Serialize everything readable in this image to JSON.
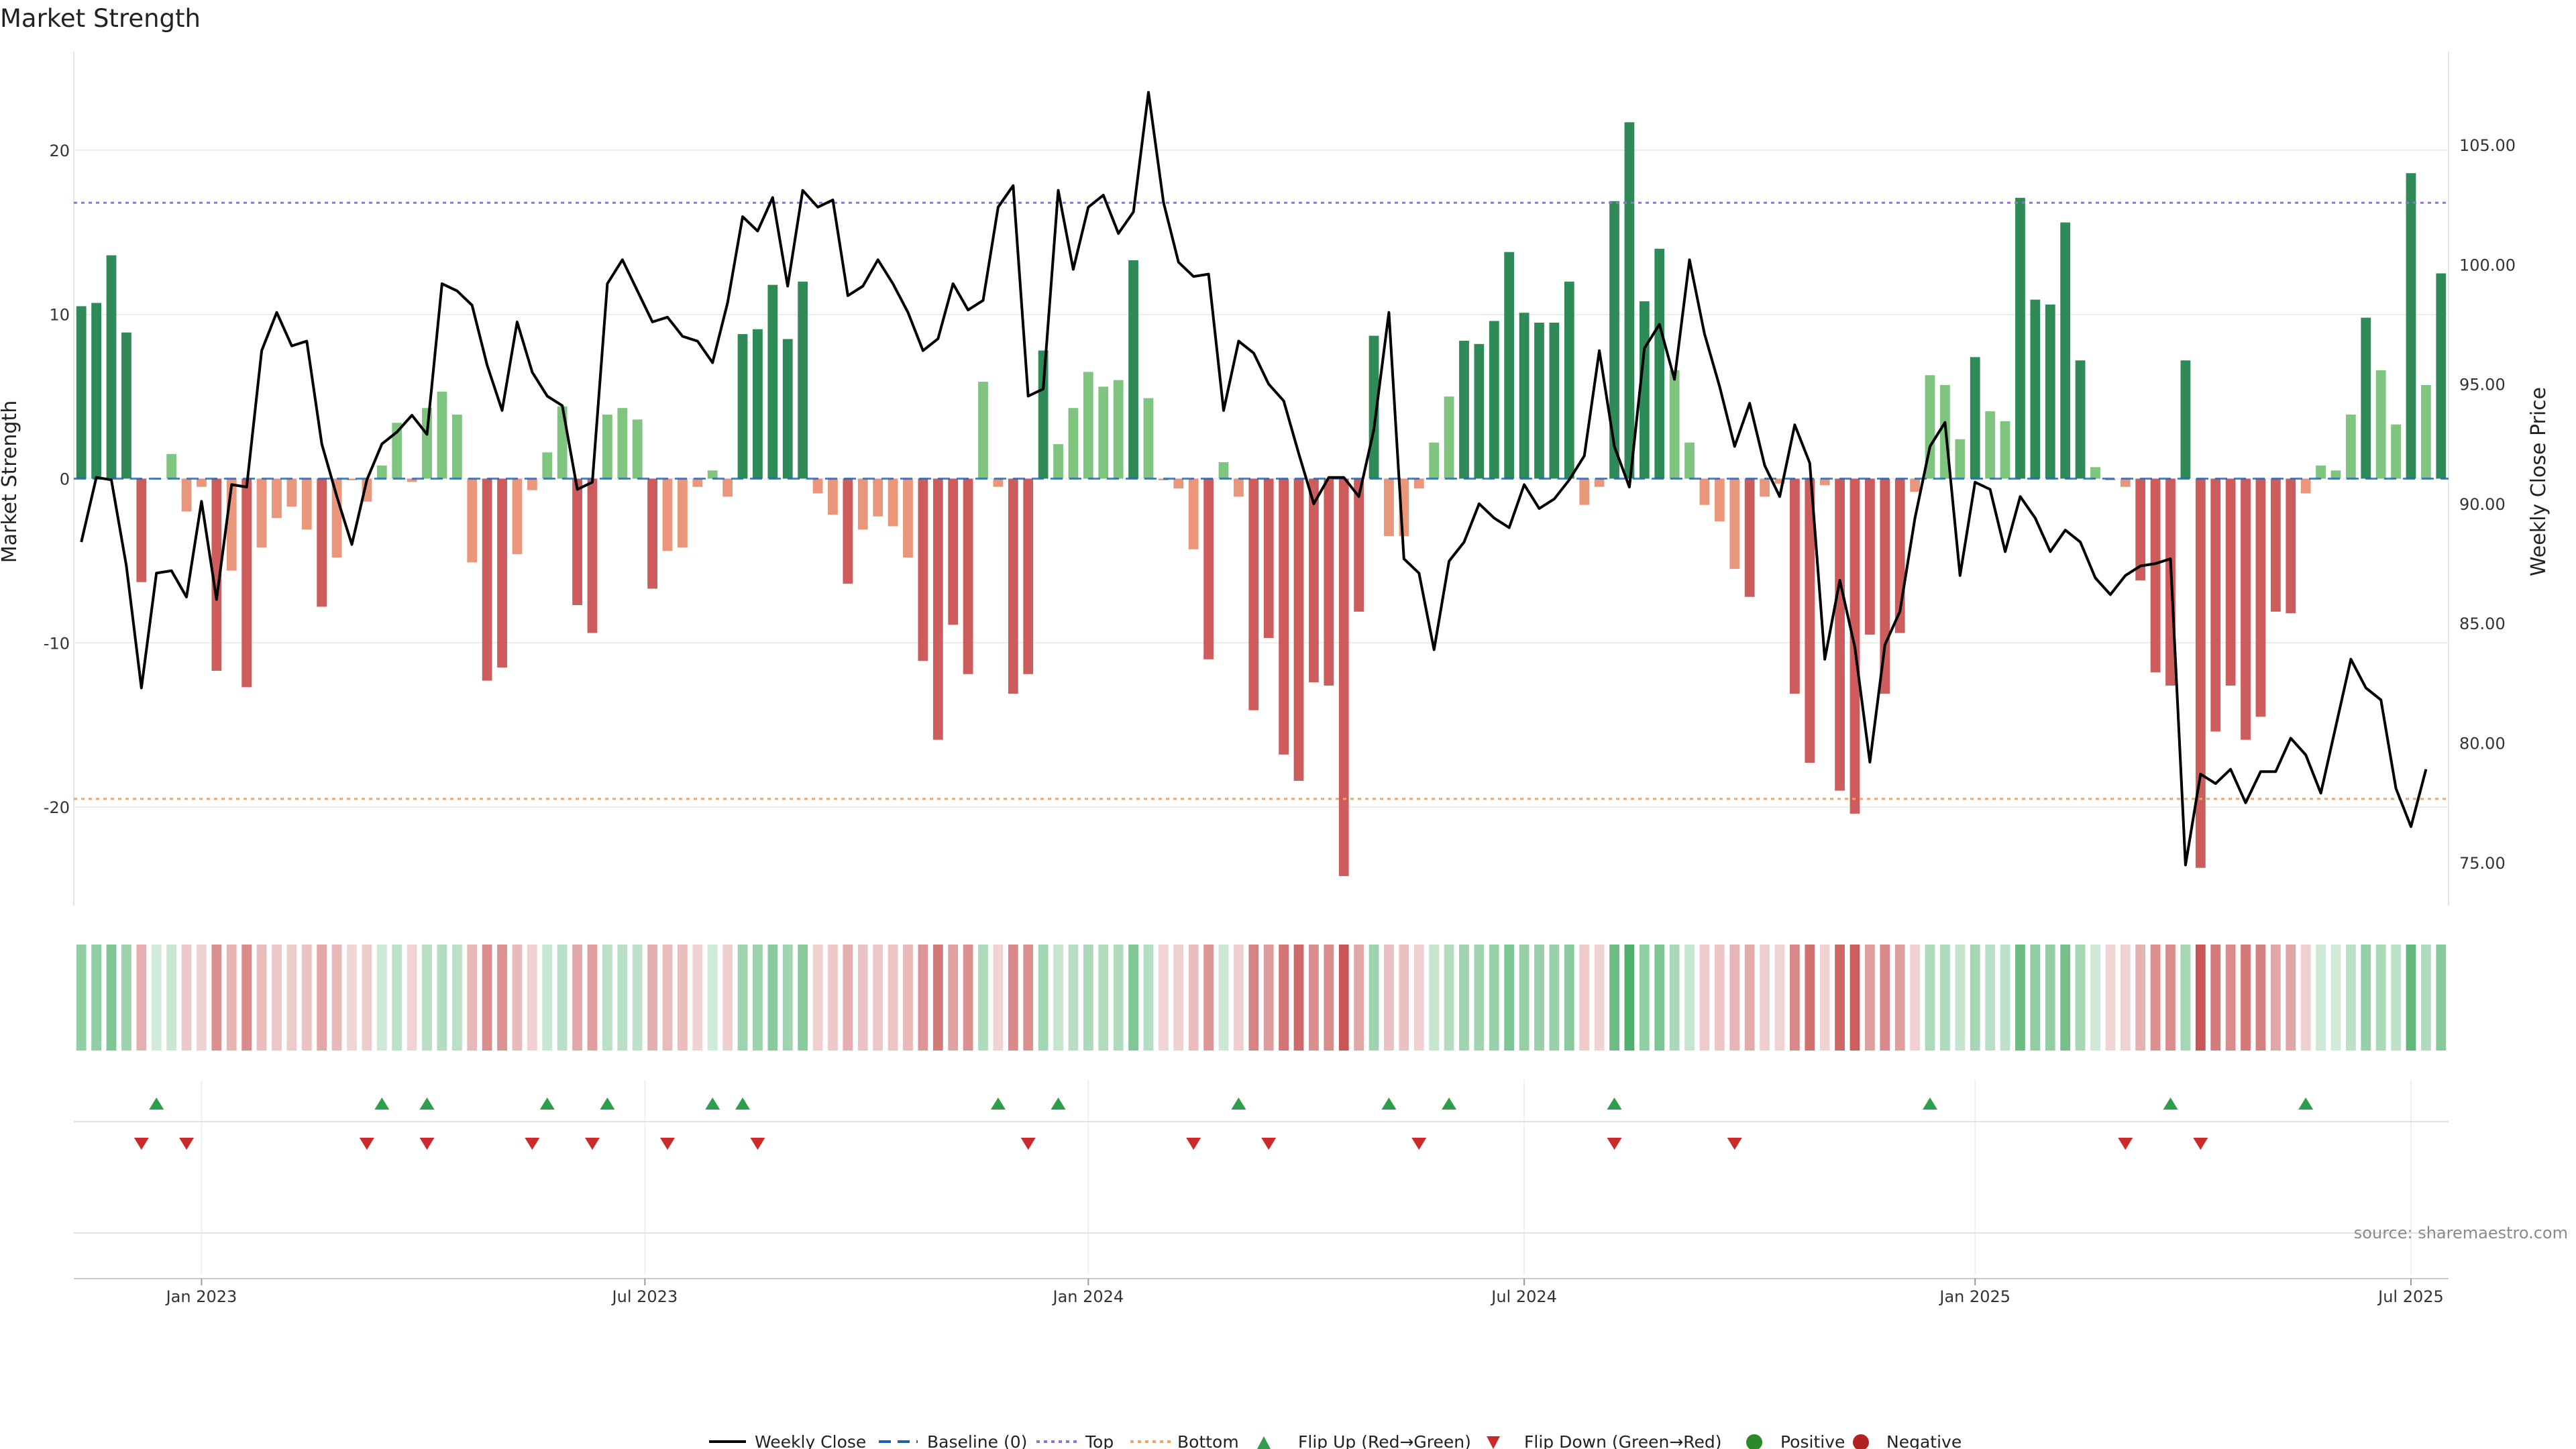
{
  "chart_data": {
    "type": "bar",
    "title": "Market Strength",
    "ylabel": "Market Strength",
    "y2label": "Weekly Close Price",
    "ylim": [
      -26,
      26
    ],
    "y2lim": [
      73.2,
      108.9
    ],
    "yticks": [
      20,
      10,
      0,
      -10,
      -20
    ],
    "y2ticks": [
      "105.00",
      "100.00",
      "95.00",
      "90.00",
      "85.00",
      "80.00",
      "75.00"
    ],
    "xticks": [
      "Jan 2023",
      "Jul 2023",
      "Jan 2024",
      "Jul 2024",
      "Jan 2025",
      "Jul 2025"
    ],
    "top_line": 16.8,
    "bottom_line": -19.5,
    "legend_position": "bottom",
    "source": "source: sharemaestro.com",
    "legend": {
      "weekly_close": "Weekly Close",
      "baseline": "Baseline (0)",
      "top": "Top",
      "bottom": "Bottom",
      "flip_up": "Flip Up (Red→Green)",
      "flip_down": "Flip Down (Green→Red)",
      "positive": "Positive",
      "negative": "Negative"
    },
    "colors": {
      "strong_green": "#2e8b57",
      "light_green": "#7fc47f",
      "strong_red": "#cd5c5c",
      "light_red": "#e9967a",
      "close_line": "#000000",
      "top_line": "#9370db",
      "bottom_line": "#f4a460",
      "flip_up": "#2e9e4a",
      "flip_down": "#cc2a2a",
      "positive_dot": "#2a8a2a",
      "negative_dot": "#b22222"
    },
    "series": [
      {
        "name": "Market Strength",
        "values": [
          10.5,
          10.7,
          13.6,
          8.9,
          -6.3,
          0,
          1.5,
          -2,
          -0.5,
          -11.7,
          -5.6,
          -12.7,
          -4.2,
          -2.4,
          -1.7,
          -3.1,
          -7.8,
          -4.8,
          -0.1,
          -1.4,
          0.8,
          3.4,
          -0.2,
          4.3,
          5.3,
          3.9,
          -5.1,
          -12.3,
          -11.5,
          -4.6,
          -0.7,
          1.6,
          4.4,
          -7.7,
          -9.4,
          3.9,
          4.3,
          3.6,
          -6.7,
          -4.4,
          -4.2,
          -0.5,
          0.5,
          -1.1,
          8.8,
          9.1,
          11.8,
          8.5,
          12,
          -0.9,
          -2.2,
          -6.4,
          -3.1,
          -2.3,
          -2.9,
          -4.8,
          -11.1,
          -15.9,
          -8.9,
          -11.9,
          5.9,
          -0.5,
          -13.1,
          -11.9,
          7.8,
          2.1,
          4.3,
          6.5,
          5.6,
          6,
          13.3,
          4.9,
          -0.1,
          -0.6,
          -4.3,
          -11,
          1,
          -1.1,
          -14.1,
          -9.7,
          -16.8,
          -18.4,
          -12.4,
          -12.6,
          -24.2,
          -8.1,
          8.7,
          -3.5,
          -3.5,
          -0.6,
          2.2,
          5,
          8.4,
          8.2,
          9.6,
          13.8,
          10.1,
          9.5,
          9.5,
          12,
          -1.6,
          -0.5,
          16.9,
          21.7,
          10.8,
          14,
          6.6,
          2.2,
          -1.6,
          -2.6,
          -5.5,
          -7.2,
          -1.1,
          -0.3,
          -13.1,
          -17.3,
          -0.4,
          -19,
          -20.4,
          -9.5,
          -13.1,
          -9.4,
          -0.8,
          6.3,
          5.7,
          2.4,
          7.4,
          4.1,
          3.5,
          17.1,
          10.9,
          10.6,
          15.6,
          7.2,
          0.7,
          -0.1,
          -0.5,
          -6.2,
          -11.8,
          -12.6,
          7.2,
          -23.7,
          -15.4,
          -12.6,
          -15.9,
          -14.5,
          -8.1,
          -8.2,
          -0.9,
          0.8,
          0.5,
          3.9,
          9.8,
          6.6,
          3.3,
          18.6,
          5.7,
          12.5
        ]
      },
      {
        "name": "Weekly Close",
        "values": [
          88.4,
          91.1,
          91,
          87.4,
          82.3,
          87.1,
          87.2,
          86.1,
          90.1,
          86,
          90.8,
          90.7,
          96.4,
          98,
          96.6,
          96.8,
          92.5,
          90.3,
          88.3,
          91,
          92.5,
          93,
          93.7,
          92.9,
          99.2,
          98.9,
          98.3,
          95.8,
          93.9,
          97.6,
          95.5,
          94.5,
          94.1,
          90.6,
          90.9,
          99.2,
          100.2,
          98.9,
          97.6,
          97.8,
          97,
          96.8,
          95.9,
          98.4,
          102,
          101.4,
          102.8,
          99.1,
          103.1,
          102.4,
          102.7,
          98.7,
          99.1,
          100.2,
          99.2,
          98,
          96.4,
          96.9,
          99.2,
          98.1,
          98.5,
          102.4,
          103.3,
          94.5,
          94.8,
          103.1,
          99.8,
          102.4,
          102.9,
          101.3,
          102.2,
          107.2,
          102.6,
          100.1,
          99.5,
          99.6,
          93.9,
          96.8,
          96.3,
          95,
          94.3,
          92.1,
          90,
          91.1,
          91.1,
          90.3,
          93.1,
          98,
          87.7,
          87.1,
          83.9,
          87.6,
          88.4,
          90,
          89.4,
          89,
          90.8,
          89.8,
          90.2,
          91,
          92,
          96.4,
          92.4,
          90.7,
          96.5,
          97.5,
          95.2,
          100.2,
          97.1,
          94.9,
          92.4,
          94.2,
          91.6,
          90.3,
          93.3,
          91.7,
          83.5,
          86.8,
          84,
          79.2,
          84.1,
          85.5,
          89.4,
          92.4,
          93.4,
          87,
          90.9,
          90.6,
          88,
          90.3,
          89.4,
          88,
          88.9,
          88.4,
          86.9,
          86.2,
          87,
          87.4,
          87.5,
          87.7,
          74.9,
          78.7,
          78.3,
          78.9,
          77.5,
          78.8,
          78.8,
          80.2,
          79.5,
          77.9,
          80.7,
          83.5,
          82.3,
          81.8,
          78.1,
          76.5,
          78.9
        ]
      }
    ],
    "heat_strip": "Color strip of weekly market strength; green = positive, red = negative; shade shows magnitude.",
    "flip_up_weeks": [
      5,
      20,
      23,
      31,
      35,
      42,
      44,
      61,
      65,
      77,
      87,
      91,
      102,
      123,
      139,
      148
    ],
    "flip_down_weeks": [
      4,
      7,
      19,
      23,
      30,
      34,
      39,
      45,
      63,
      74,
      79,
      89,
      102,
      110,
      136,
      141
    ]
  }
}
